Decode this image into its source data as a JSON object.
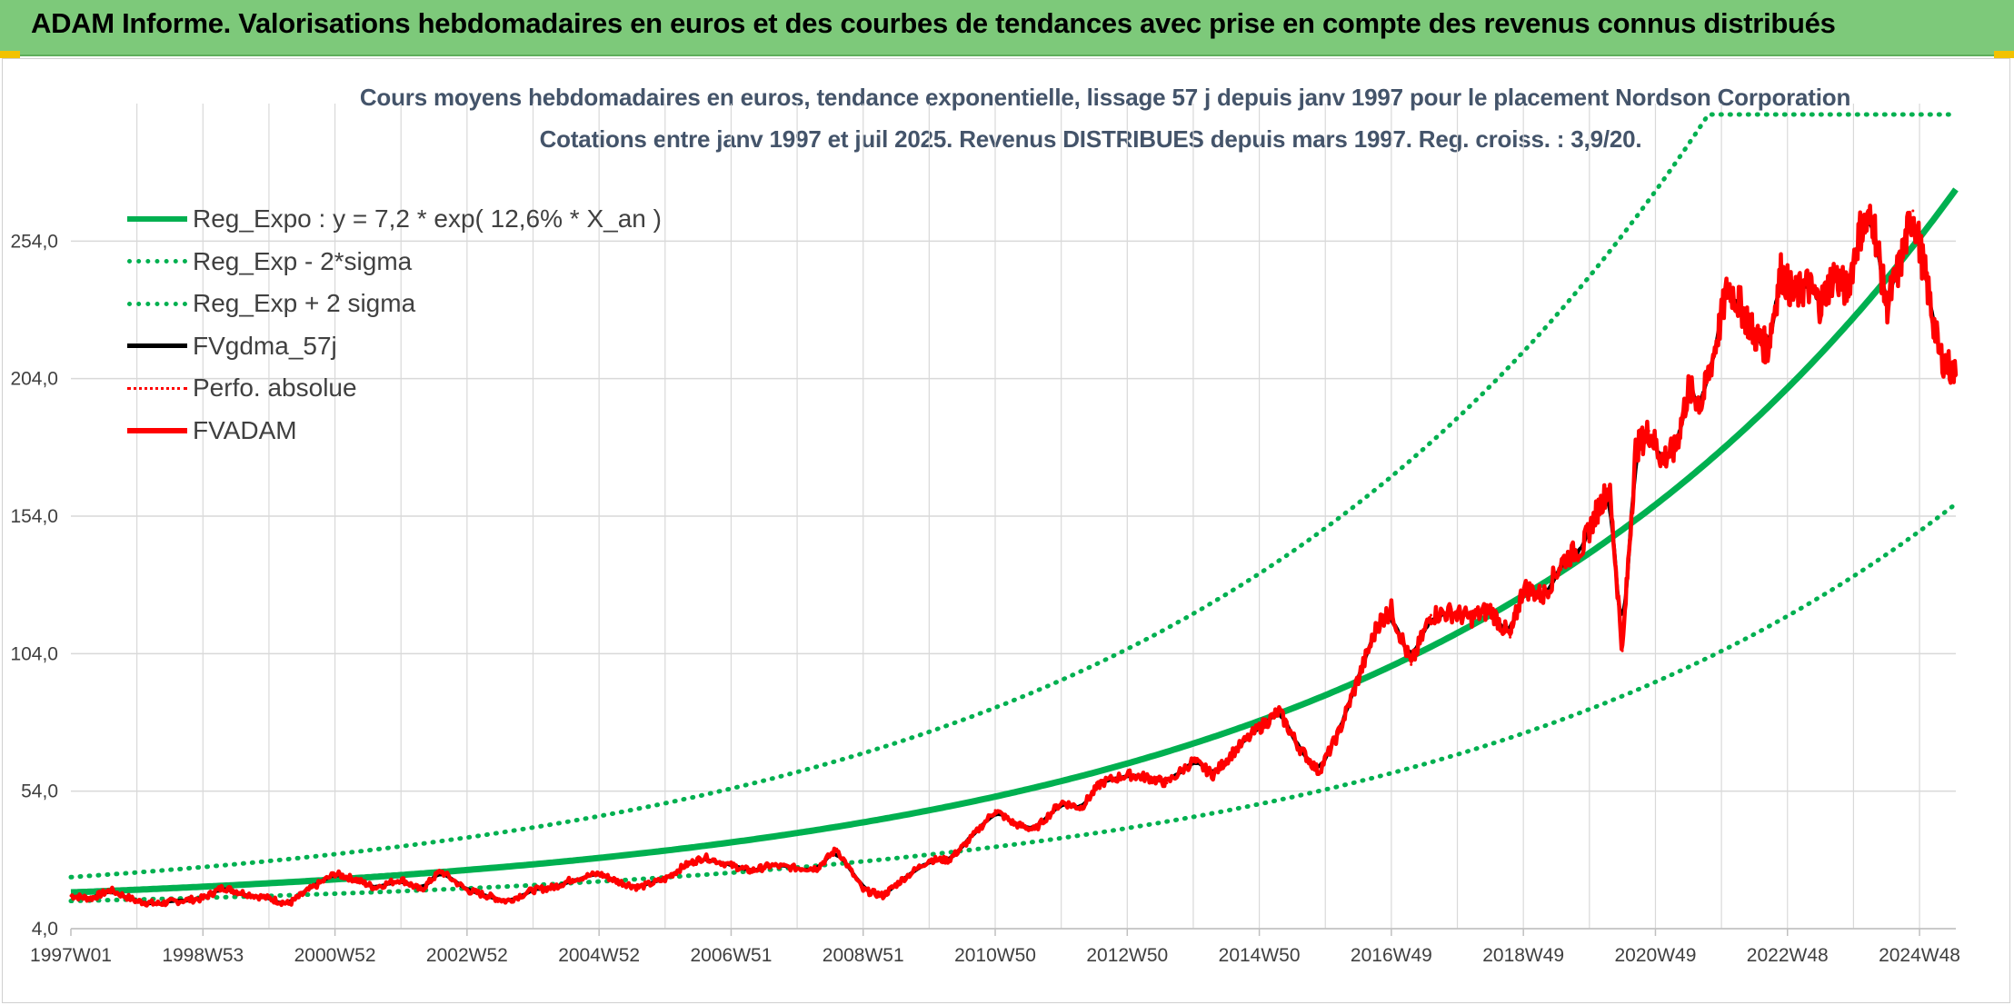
{
  "banner": {
    "title": "ADAM Informe. Valorisations hebdomadaires en euros et des courbes de tendances avec prise en compte des revenus connus distribués"
  },
  "colors": {
    "banner": "#7dc97a",
    "reg_expo": "#00b050",
    "fvgdma": "#000000",
    "fvadam": "#ff0000",
    "grid": "#d9d9d9",
    "title": "#44546a"
  },
  "chart_data": {
    "type": "line",
    "title": "Cours moyens hebdomadaires en euros, tendance exponentielle, lissage 57 j depuis janv 1997 pour le placement Nordson Corporation",
    "subtitle": "Cotations entre janv 1997 et juil 2025. Revenus DISTRIBUES depuis mars 1997. Reg. croiss. : 3,9/20.",
    "xlabel": "",
    "ylabel": "",
    "ylim": [
      4.0,
      304.0
    ],
    "xlim": [
      1997.0,
      2025.55
    ],
    "y_ticks": [
      "4,0",
      "54,0",
      "104,0",
      "154,0",
      "204,0",
      "254,0"
    ],
    "x_ticks": [
      {
        "label": "1997W01",
        "x": 1997.0
      },
      {
        "label": "1998W53",
        "x": 1999.0
      },
      {
        "label": "2000W52",
        "x": 2001.0
      },
      {
        "label": "2002W52",
        "x": 2003.0
      },
      {
        "label": "2004W52",
        "x": 2005.0
      },
      {
        "label": "2006W51",
        "x": 2007.0
      },
      {
        "label": "2008W51",
        "x": 2009.0
      },
      {
        "label": "2010W50",
        "x": 2011.0
      },
      {
        "label": "2012W50",
        "x": 2013.0
      },
      {
        "label": "2014W50",
        "x": 2015.0
      },
      {
        "label": "2016W49",
        "x": 2017.0
      },
      {
        "label": "2018W49",
        "x": 2019.0
      },
      {
        "label": "2020W49",
        "x": 2021.0
      },
      {
        "label": "2022W48",
        "x": 2023.0
      },
      {
        "label": "2024W48",
        "x": 2025.0
      }
    ],
    "grid": true,
    "legend_position": "top-left",
    "regression": {
      "a": 7.2,
      "rate": 0.126,
      "sigma_factor_low": 0.565,
      "sigma_factor_high": 1.77
    },
    "series": [
      {
        "name": "Reg_Expo : y = 7,2 * exp( 12,6% *  X_an )",
        "style": "solid-thick",
        "color": "#00b050",
        "kind": "reg"
      },
      {
        "name": "Reg_Exp - 2*sigma",
        "style": "dotted",
        "color": "#00b050",
        "kind": "reg_low"
      },
      {
        "name": "Reg_Exp + 2 sigma",
        "style": "dotted",
        "color": "#00b050",
        "kind": "reg_high"
      },
      {
        "name": "FVgdma_57j",
        "style": "solid",
        "color": "#000000",
        "kind": "smooth"
      },
      {
        "name": "Perfo. absolue",
        "style": "dotted-thin",
        "color": "#ff0000",
        "kind": "none"
      },
      {
        "name": "FVADAM",
        "style": "solid-thick",
        "color": "#ff0000",
        "kind": "data",
        "x": [
          1997.0,
          1997.3,
          1997.6,
          1998.0,
          1998.3,
          1998.6,
          1999.0,
          1999.3,
          1999.6,
          2000.0,
          2000.3,
          2000.6,
          2001.0,
          2001.3,
          2001.6,
          2002.0,
          2002.3,
          2002.6,
          2003.0,
          2003.3,
          2003.6,
          2004.0,
          2004.3,
          2004.6,
          2005.0,
          2005.3,
          2005.6,
          2006.0,
          2006.3,
          2006.6,
          2007.0,
          2007.3,
          2007.6,
          2008.0,
          2008.3,
          2008.6,
          2009.0,
          2009.3,
          2009.6,
          2010.0,
          2010.3,
          2010.6,
          2011.0,
          2011.3,
          2011.6,
          2012.0,
          2012.3,
          2012.6,
          2013.0,
          2013.3,
          2013.6,
          2014.0,
          2014.3,
          2014.6,
          2015.0,
          2015.3,
          2015.6,
          2015.9,
          2016.2,
          2016.5,
          2016.8,
          2017.0,
          2017.3,
          2017.6,
          2017.9,
          2018.2,
          2018.5,
          2018.8,
          2019.0,
          2019.3,
          2019.6,
          2019.9,
          2020.1,
          2020.3,
          2020.5,
          2020.7,
          2020.9,
          2021.1,
          2021.3,
          2021.5,
          2021.7,
          2021.9,
          2022.1,
          2022.3,
          2022.5,
          2022.7,
          2022.9,
          2023.1,
          2023.3,
          2023.5,
          2023.7,
          2023.9,
          2024.1,
          2024.3,
          2024.5,
          2024.7,
          2024.9,
          2025.1,
          2025.3,
          2025.55
        ],
        "y": [
          16,
          15,
          18,
          14,
          13,
          14,
          15,
          19,
          17,
          15,
          13,
          18,
          24,
          22,
          19,
          22,
          18,
          25,
          18,
          16,
          14,
          18,
          19,
          22,
          24,
          21,
          19,
          22,
          27,
          30,
          27,
          25,
          27,
          26,
          26,
          33,
          18,
          16,
          22,
          29,
          29,
          36,
          47,
          42,
          40,
          50,
          48,
          57,
          60,
          59,
          57,
          65,
          60,
          68,
          77,
          83,
          70,
          61,
          75,
          95,
          115,
          120,
          100,
          118,
          119,
          117,
          120,
          110,
          128,
          125,
          138,
          143,
          155,
          165,
          105,
          178,
          185,
          175,
          178,
          200,
          195,
          215,
          238,
          230,
          220,
          215,
          243,
          234,
          238,
          231,
          242,
          236,
          258,
          262,
          230,
          245,
          265,
          240,
          213,
          205
        ]
      }
    ]
  }
}
